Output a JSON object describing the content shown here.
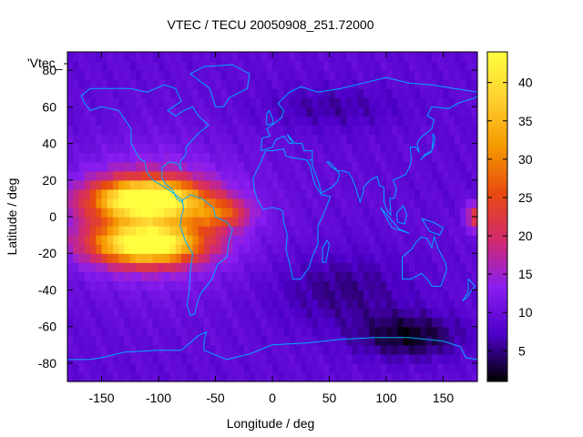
{
  "chart_data": {
    "type": "heatmap",
    "title": "VTEC / TECU 20050908_251.72000",
    "xlabel": "Longitude / deg",
    "ylabel": "Latitude / deg",
    "legend_label": "'Vtec_",
    "xlim": [
      -180,
      180
    ],
    "ylim": [
      -90,
      90
    ],
    "xticks": [
      -150,
      -100,
      -50,
      0,
      50,
      100,
      150
    ],
    "yticks": [
      -80,
      -60,
      -40,
      -20,
      0,
      20,
      40,
      60,
      80
    ],
    "colorbar": {
      "range": [
        1,
        44
      ],
      "ticks": [
        5,
        10,
        15,
        20,
        25,
        30,
        35,
        40
      ],
      "palette": [
        "#000000",
        "#4d00c8",
        "#8a1ef0",
        "#d22a6e",
        "#e84a10",
        "#f59a00",
        "#ffd030",
        "#ffff40"
      ]
    },
    "grid_step_deg": 5,
    "field_description": {
      "background": 9,
      "features": [
        {
          "lon": -130,
          "lat": 10,
          "peak": 38
        },
        {
          "lon": -110,
          "lat": -15,
          "peak": 42
        },
        {
          "lon": -110,
          "lat": 10,
          "peak": 42
        },
        {
          "lon": -55,
          "lat": 2,
          "peak": 25
        },
        {
          "lon": 175,
          "lat": 0,
          "peak": 24
        },
        {
          "lon": 130,
          "lat": -65,
          "peak": 2
        },
        {
          "lon": 40,
          "lat": 60,
          "peak": 7
        }
      ]
    },
    "coastline_color": "#00aaff"
  }
}
